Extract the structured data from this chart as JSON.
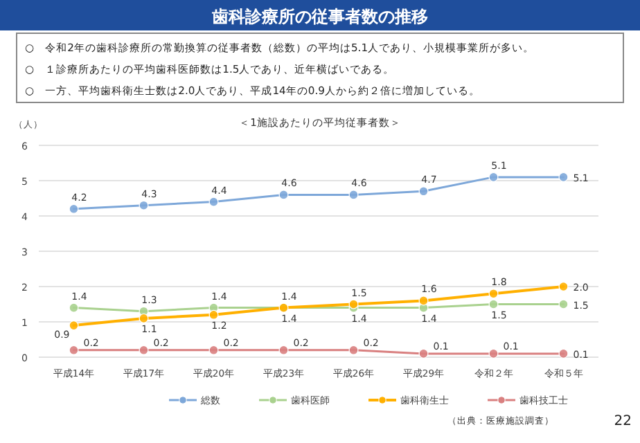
{
  "chart_data": {
    "type": "line",
    "title": "歯科診療所の従事者数の推移",
    "subtitle": "＜1施設あたりの平均従事者数＞",
    "ylabel": "（人）",
    "annotations": [
      "○　令和2年の歯科診療所の常勤換算の従事者数（総数）の平均は5.1人であり、小規模事業所が多い。",
      "○　１診療所あたりの平均歯科医師数は1.5人であり、近年横ばいである。",
      "○　一方、平均歯科衛生士数は2.0人であり、平成14年の0.9人から約２倍に増加している。",
      "（出典：医療施設調査）",
      "22"
    ],
    "categories": [
      "平成14年",
      "平成17年",
      "平成20年",
      "平成23年",
      "平成26年",
      "平成29年",
      "令和２年",
      "令和５年"
    ],
    "series": [
      {
        "name": "総数",
        "color": "#7da7d9",
        "values": [
          4.2,
          4.3,
          4.4,
          4.6,
          4.6,
          4.7,
          5.1,
          5.1
        ]
      },
      {
        "name": "歯科医師",
        "color": "#a9d18e",
        "values": [
          1.4,
          1.3,
          1.4,
          1.4,
          1.4,
          1.4,
          1.5,
          1.5
        ]
      },
      {
        "name": "歯科衛生士",
        "color": "#ffb000",
        "values": [
          0.9,
          1.1,
          1.2,
          1.4,
          1.5,
          1.6,
          1.8,
          2.0
        ],
        "value_labels": [
          "0.9",
          "1.1",
          "1.2",
          "1.4",
          "1.5",
          "1.6",
          "1.8",
          "2.0"
        ]
      },
      {
        "name": "歯科技工士",
        "color": "#d98080",
        "values": [
          0.2,
          0.2,
          0.2,
          0.2,
          0.2,
          0.1,
          0.1,
          0.1
        ]
      }
    ],
    "ylim": [
      0,
      6
    ],
    "yticks": [
      0,
      1,
      2,
      3,
      4,
      5,
      6
    ],
    "grid": "y",
    "legend": "bottom",
    "marker": "circle",
    "line_style": "solid",
    "data_labels": true
  }
}
